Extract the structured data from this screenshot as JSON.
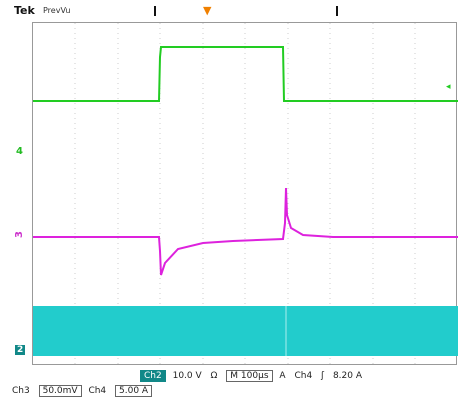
{
  "header": {
    "brand": "Tek",
    "mode": "PrevVu",
    "trigger_marker": "T"
  },
  "markers": {
    "ch4": "4",
    "ch3": "3",
    "ch2": "2"
  },
  "status_line1": {
    "ch2_label": "Ch2",
    "ch2_scale": "10.0 V",
    "bw_icon": "Ω",
    "timebase": "M 100µs",
    "trigger_src_icon": "A",
    "trigger_src": "Ch4",
    "trigger_slope": "ʃ",
    "trigger_level": "8.20 A"
  },
  "status_line2": {
    "ch3_label": "Ch3",
    "ch3_scale": "50.0mV",
    "ch4_label": "Ch4",
    "ch4_scale": "5.00 A"
  },
  "colors": {
    "ch4_trace": "#22cc22",
    "ch3_trace": "#dd22dd",
    "ch2_trace": "#22cccc",
    "trigger": "#f08000"
  }
}
